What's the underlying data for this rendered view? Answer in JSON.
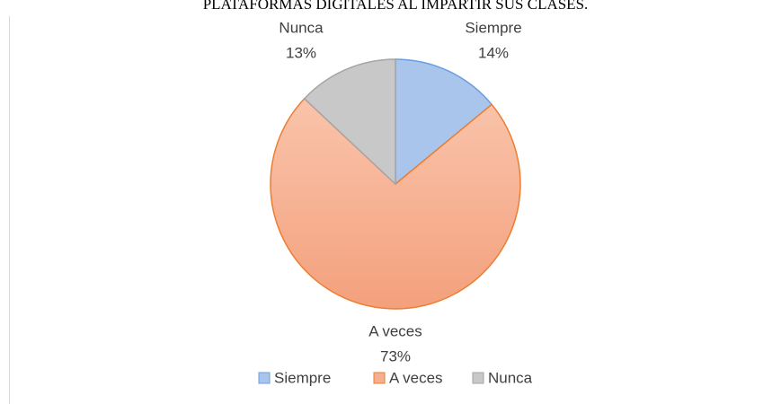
{
  "chart_data": {
    "type": "pie",
    "title": "PLATAFORMAS DIGITALES AL IMPARTIR SUS CLASES.",
    "categories": [
      "Siempre",
      "A veces",
      "Nunca"
    ],
    "values": [
      14,
      73,
      13
    ],
    "value_labels": [
      "14%",
      "73%",
      "13%"
    ],
    "colors": [
      "#a9c5ec",
      "#f7b08f",
      "#c8c8c8"
    ],
    "legend": "bottom"
  }
}
